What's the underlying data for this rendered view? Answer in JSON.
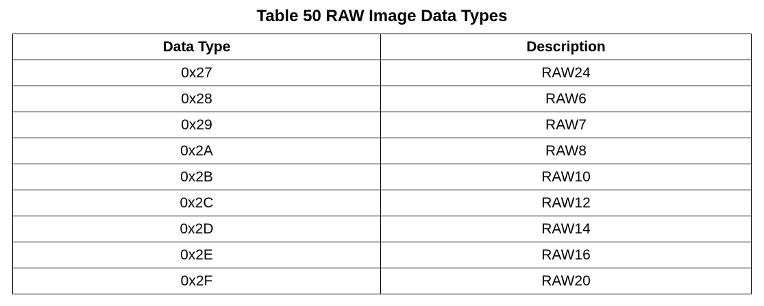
{
  "caption": "Table 50 RAW Image Data Types",
  "table": {
    "headers": [
      "Data Type",
      "Description"
    ],
    "rows": [
      [
        "0x27",
        "RAW24"
      ],
      [
        "0x28",
        "RAW6"
      ],
      [
        "0x29",
        "RAW7"
      ],
      [
        "0x2A",
        "RAW8"
      ],
      [
        "0x2B",
        "RAW10"
      ],
      [
        "0x2C",
        "RAW12"
      ],
      [
        "0x2D",
        "RAW14"
      ],
      [
        "0x2E",
        "RAW16"
      ],
      [
        "0x2F",
        "RAW20"
      ]
    ]
  }
}
